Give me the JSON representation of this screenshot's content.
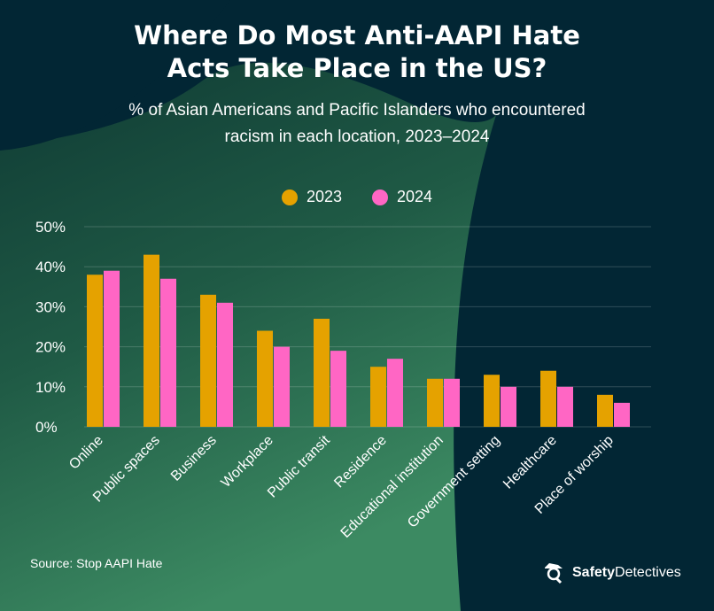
{
  "title_line1": "Where Do Most Anti-AAPI Hate",
  "title_line2": "Acts Take Place in the US?",
  "subtitle_line1": "% of Asian Americans and Pacific Islanders who encountered",
  "subtitle_line2": "racism in each location, 2023–2024",
  "source": "Source: Stop AAPI Hate",
  "logo": {
    "bold": "Safety",
    "regular": "Detectives"
  },
  "colors": {
    "background": "#022634",
    "green": "#2f7a57",
    "2023": "#e5a200",
    "2024": "#ff66c4"
  },
  "chart_data": {
    "type": "bar",
    "categories": [
      "Online",
      "Public spaces",
      "Business",
      "Workplace",
      "Public transit",
      "Residence",
      "Educational institution",
      "Government setting",
      "Healthcare",
      "Place of worship"
    ],
    "series": [
      {
        "name": "2023",
        "values": [
          38,
          43,
          33,
          24,
          27,
          15,
          12,
          13,
          14,
          8
        ]
      },
      {
        "name": "2024",
        "values": [
          39,
          37,
          31,
          20,
          19,
          17,
          12,
          10,
          10,
          6
        ]
      }
    ],
    "ylim": [
      0,
      50
    ],
    "yticks": [
      "0%",
      "10%",
      "20%",
      "30%",
      "40%",
      "50%"
    ],
    "grid": true,
    "legend_position": "top-center"
  }
}
